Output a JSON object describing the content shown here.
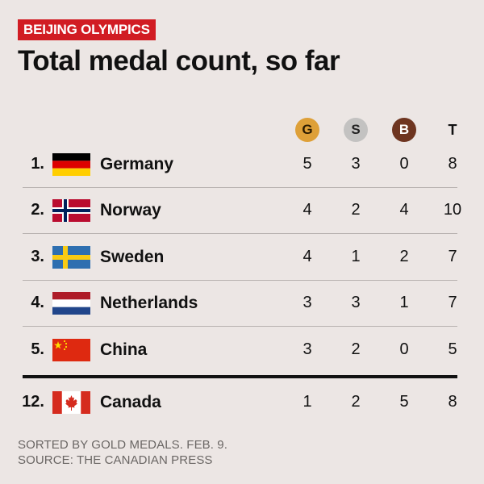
{
  "kicker": "BEIJING OLYMPICS",
  "title": "Total medal count, so far",
  "columns": {
    "gold": "G",
    "silver": "S",
    "bronze": "B",
    "total": "T"
  },
  "colors": {
    "kicker_bg": "#d11c23",
    "gold": "#dea038",
    "silver": "#c3c2c1",
    "bronze": "#6e3520",
    "background": "#ece6e4"
  },
  "rows": [
    {
      "rank": "1.",
      "country": "Germany",
      "flag": "germany-flag-icon",
      "gold": "5",
      "silver": "3",
      "bronze": "0",
      "total": "8"
    },
    {
      "rank": "2.",
      "country": "Norway",
      "flag": "norway-flag-icon",
      "gold": "4",
      "silver": "2",
      "bronze": "4",
      "total": "10"
    },
    {
      "rank": "3.",
      "country": "Sweden",
      "flag": "sweden-flag-icon",
      "gold": "4",
      "silver": "1",
      "bronze": "2",
      "total": "7"
    },
    {
      "rank": "4.",
      "country": "Netherlands",
      "flag": "netherlands-flag-icon",
      "gold": "3",
      "silver": "3",
      "bronze": "1",
      "total": "7"
    },
    {
      "rank": "5.",
      "country": "China",
      "flag": "china-flag-icon",
      "gold": "3",
      "silver": "2",
      "bronze": "0",
      "total": "5"
    }
  ],
  "highlight_row": {
    "rank": "12.",
    "country": "Canada",
    "flag": "canada-flag-icon",
    "gold": "1",
    "silver": "2",
    "bronze": "5",
    "total": "8"
  },
  "footer": {
    "line1": "SORTED BY GOLD MEDALS. FEB. 9.",
    "line2": "SOURCE: THE CANADIAN PRESS"
  }
}
